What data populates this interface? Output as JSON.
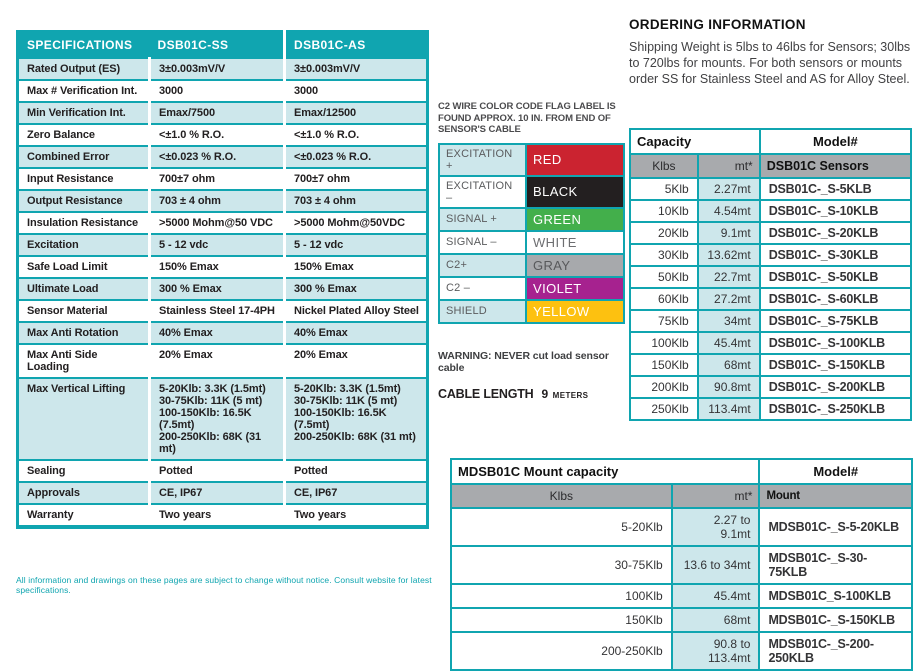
{
  "colors": {
    "teal": "#10a5b0",
    "teal_tint": "#cde7eb",
    "gray_header": "#a8aaad",
    "dark_text": "#232021"
  },
  "spec_table": {
    "headers": {
      "col1": "SPECIFICATIONS",
      "col2": "DSB01C-SS",
      "col3": "DSB01C-AS"
    },
    "rows": [
      {
        "label": "Rated Output (ES)",
        "ss": "3±0.003mV/V",
        "as": "3±0.003mV/V"
      },
      {
        "label": "Max # Verification Int.",
        "ss": "3000",
        "as": "3000"
      },
      {
        "label": "Min Verification Int.",
        "ss": "Emax/7500",
        "as": "Emax/12500"
      },
      {
        "label": "Zero Balance",
        "ss": "<±1.0 % R.O.",
        "as": "<±1.0 % R.O."
      },
      {
        "label": "Combined Error",
        "ss": "<±0.023 % R.O.",
        "as": "<±0.023 % R.O."
      },
      {
        "label": "Input Resistance",
        "ss": "700±7 ohm",
        "as": "700±7 ohm"
      },
      {
        "label": "Output Resistance",
        "ss": "703 ± 4 ohm",
        "as": "703 ± 4 ohm"
      },
      {
        "label": "Insulation Resistance",
        "ss": ">5000 Mohm@50 VDC",
        "as": ">5000 Mohm@50VDC"
      },
      {
        "label": "Excitation",
        "ss": "5 - 12 vdc",
        "as": "5 - 12 vdc"
      },
      {
        "label": "Safe Load Limit",
        "ss": "150% Emax",
        "as": "150% Emax"
      },
      {
        "label": "Ultimate Load",
        "ss": "300 % Emax",
        "as": "300 % Emax"
      },
      {
        "label": "Sensor Material",
        "ss": "Stainless Steel 17-4PH",
        "as": "Nickel Plated Alloy Steel"
      },
      {
        "label": "Max Anti Rotation",
        "ss": "40% Emax",
        "as": "40% Emax"
      },
      {
        "label": "Max Anti Side Loading",
        "ss": "20% Emax",
        "as": "20% Emax"
      },
      {
        "label": "Max Vertical Lifting",
        "ss": "5-20Klb: 3.3K (1.5mt)\n30-75Klb: 11K (5 mt)\n100-150Klb: 16.5K (7.5mt)\n200-250Klb: 68K (31 mt)",
        "as": "5-20Klb: 3.3K (1.5mt)\n30-75Klb: 11K (5 mt)\n100-150Klb: 16.5K (7.5mt)\n200-250Klb: 68K (31 mt)"
      },
      {
        "label": "Sealing",
        "ss": "Potted",
        "as": "Potted"
      },
      {
        "label": "Approvals",
        "ss": "CE, IP67",
        "as": "CE, IP67"
      },
      {
        "label": "Warranty",
        "ss": "Two years",
        "as": "Two years"
      }
    ],
    "footnote": "All information and drawings on these pages are subject to change without notice.  Consult website for latest specifications."
  },
  "wire_label": {
    "caption": "C2 WIRE COLOR CODE FLAG LABEL IS FOUND APPROX. 10 IN. FROM END OF SENSOR'S CABLE",
    "rows": [
      {
        "signal": "EXCITATION +",
        "color_name": "RED",
        "hex": "#cb2330",
        "text_color": "#ffffff"
      },
      {
        "signal": "EXCITATION –",
        "color_name": "BLACK",
        "hex": "#231f20",
        "text_color": "#ffffff"
      },
      {
        "signal": "SIGNAL +",
        "color_name": "GREEN",
        "hex": "#43af4b",
        "text_color": "#ffffff"
      },
      {
        "signal": "SIGNAL  –",
        "color_name": "WHITE",
        "hex": "#ffffff",
        "text_color": "#6d6e71"
      },
      {
        "signal": "C2+",
        "color_name": "GRAY",
        "hex": "#a7a9ac",
        "text_color": "#58595b"
      },
      {
        "signal": "C2 –",
        "color_name": "VIOLET",
        "hex": "#a6228f",
        "text_color": "#ffffff"
      },
      {
        "signal": "SHIELD",
        "color_name": "YELLOW",
        "hex": "#fdc110",
        "text_color": "#ffffff"
      }
    ],
    "warning": "WARNING: NEVER cut load sensor cable",
    "cable_length_label": "CABLE LENGTH",
    "cable_length_number": "9",
    "cable_length_unit": "METERS"
  },
  "ordering": {
    "title": "ORDERING INFORMATION",
    "body": "Shipping Weight is 5lbs to 46lbs for Sensors; 30lbs to 720lbs for mounts.  For both sensors or mounts order SS for Stainless Steel and AS for Alloy Steel."
  },
  "sensor_table": {
    "header1": {
      "capacity": "Capacity",
      "model": "Model#"
    },
    "header2": {
      "klbs": "Klbs",
      "mt": "mt*",
      "model": "DSB01C Sensors"
    },
    "rows": [
      {
        "klb": "5Klb",
        "mt": "2.27mt",
        "model": "DSB01C-_S-5KLB"
      },
      {
        "klb": "10Klb",
        "mt": "4.54mt",
        "model": "DSB01C-_S-10KLB"
      },
      {
        "klb": "20Klb",
        "mt": "9.1mt",
        "model": "DSB01C-_S-20KLB"
      },
      {
        "klb": "30Klb",
        "mt": "13.62mt",
        "model": "DSB01C-_S-30KLB"
      },
      {
        "klb": "50Klb",
        "mt": "22.7mt",
        "model": "DSB01C-_S-50KLB"
      },
      {
        "klb": "60Klb",
        "mt": "27.2mt",
        "model": "DSB01C-_S-60KLB"
      },
      {
        "klb": "75Klb",
        "mt": "34mt",
        "model": "DSB01C-_S-75KLB"
      },
      {
        "klb": "100Klb",
        "mt": "45.4mt",
        "model": "DSB01C-_S-100KLB"
      },
      {
        "klb": "150Klb",
        "mt": "68mt",
        "model": "DSB01C-_S-150KLB"
      },
      {
        "klb": "200Klb",
        "mt": "90.8mt",
        "model": "DSB01C-_S-200KLB"
      },
      {
        "klb": "250Klb",
        "mt": "113.4mt",
        "model": "DSB01C-_S-250KLB"
      }
    ]
  },
  "mount_table": {
    "header1": {
      "capacity": "MDSB01C Mount capacity",
      "model": "Model#"
    },
    "header2": {
      "klbs": "Klbs",
      "mt": "mt*",
      "model": "Mount"
    },
    "rows": [
      {
        "klb": "5-20Klb",
        "mt": "2.27 to 9.1mt",
        "model": "MDSB01C-_S-5-20KLB"
      },
      {
        "klb": "30-75Klb",
        "mt": "13.6 to 34mt",
        "model": "MDSB01C-_S-30-75KLB"
      },
      {
        "klb": "100Klb",
        "mt": "45.4mt",
        "model": "MDSB01C_S-100KLB"
      },
      {
        "klb": "150Klb",
        "mt": "68mt",
        "model": "MDSB01C-_S-150KLB"
      },
      {
        "klb": "200-250Klb",
        "mt": "90.8 to 113.4mt",
        "model": "MDSB01C-_S-200-250KLB"
      }
    ]
  }
}
